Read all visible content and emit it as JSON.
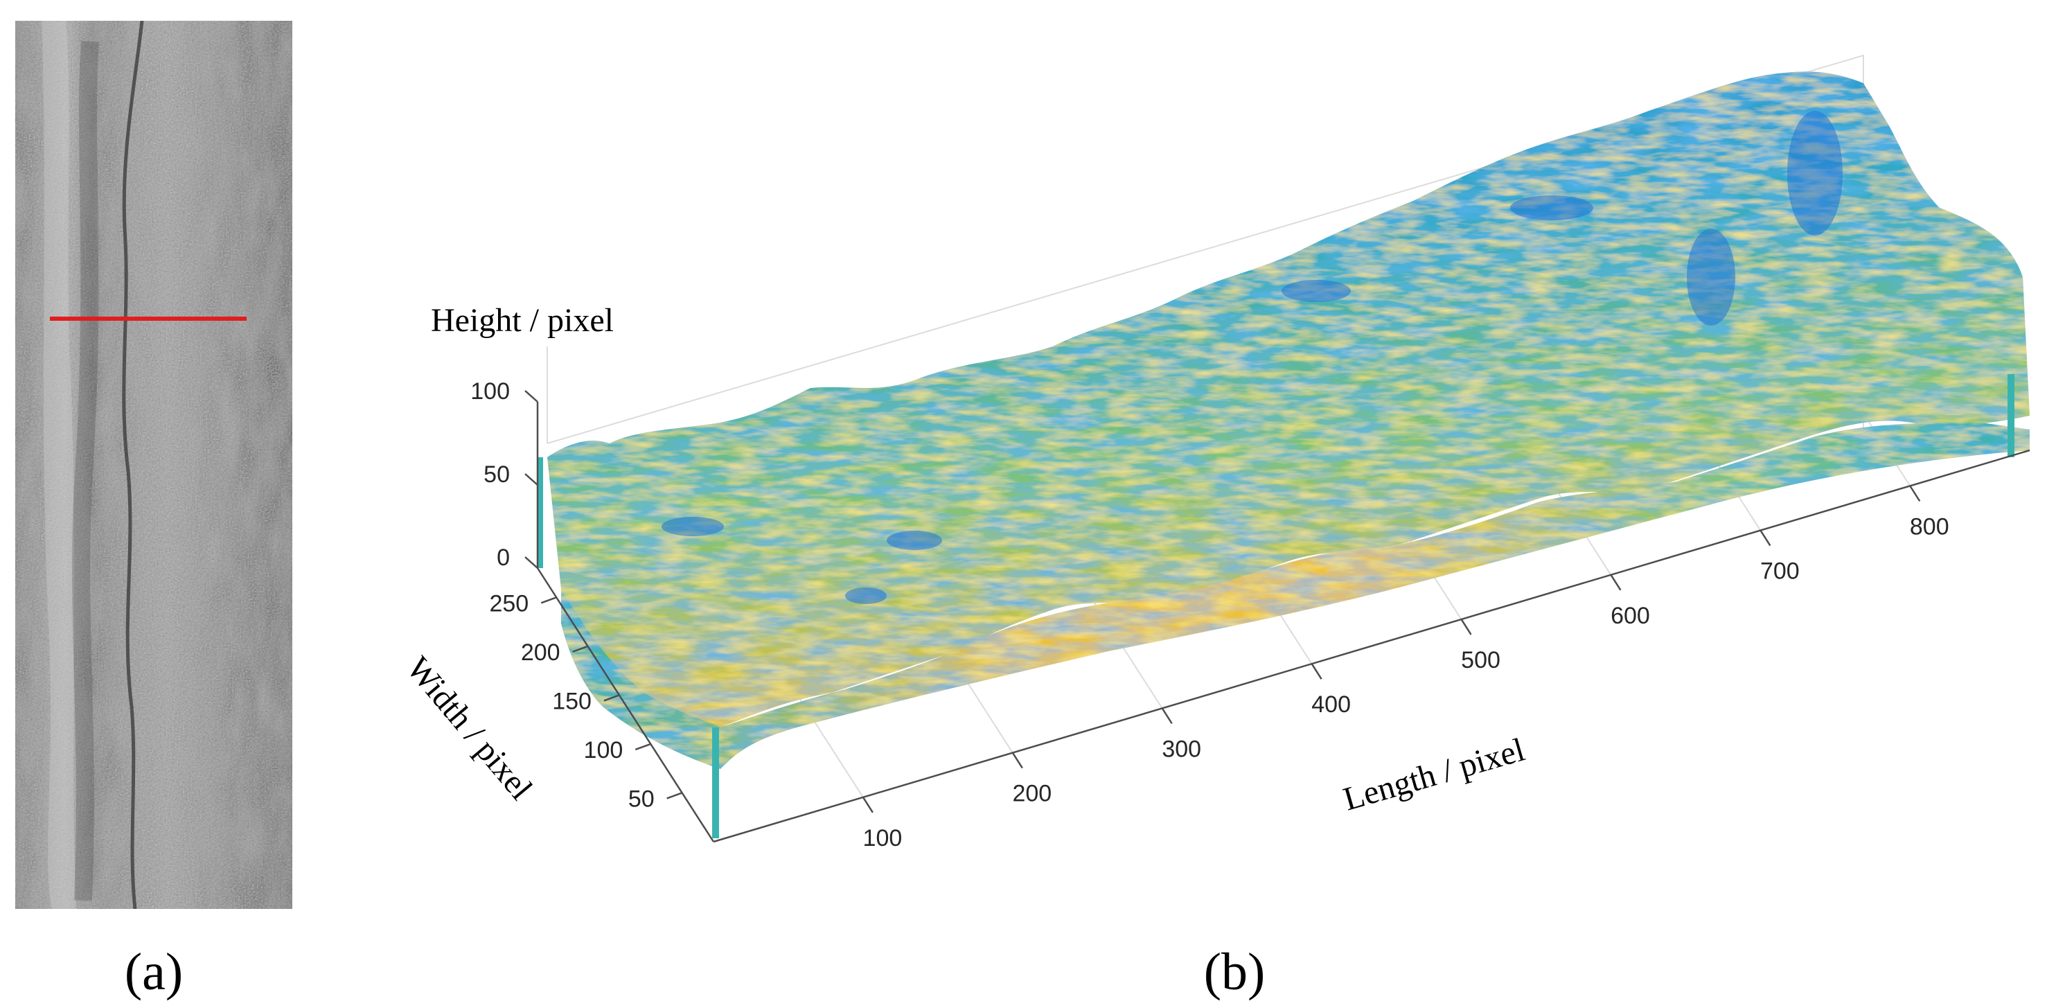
{
  "panels": {
    "a": {
      "label": "(a)"
    },
    "b": {
      "label": "(b)"
    }
  },
  "colors": {
    "marker_line": "#e11d1d",
    "surface_low": "#1a6fdc",
    "surface_mid": "#3cb6b0",
    "surface_high": "#f2c230",
    "grid": "#d9d9d9",
    "axis": "#4d4d4d"
  },
  "image_a": {
    "description_tag": "grayscale-rock-surface-photo",
    "marker": "horizontal red line"
  },
  "chart_data": {
    "type": "surface",
    "title": "",
    "xlabel": "Length / pixel",
    "ylabel": "Width / pixel",
    "zlabel": "Height / pixel",
    "x_ticks": [
      100,
      200,
      300,
      400,
      500,
      600,
      700,
      800
    ],
    "y_ticks": [
      50,
      100,
      150,
      200,
      250
    ],
    "z_ticks": [
      0,
      50,
      100
    ],
    "xlim": [
      0,
      880
    ],
    "ylim": [
      0,
      280
    ],
    "zlim": [
      0,
      120
    ],
    "grid": true,
    "colormap": "parula"
  }
}
